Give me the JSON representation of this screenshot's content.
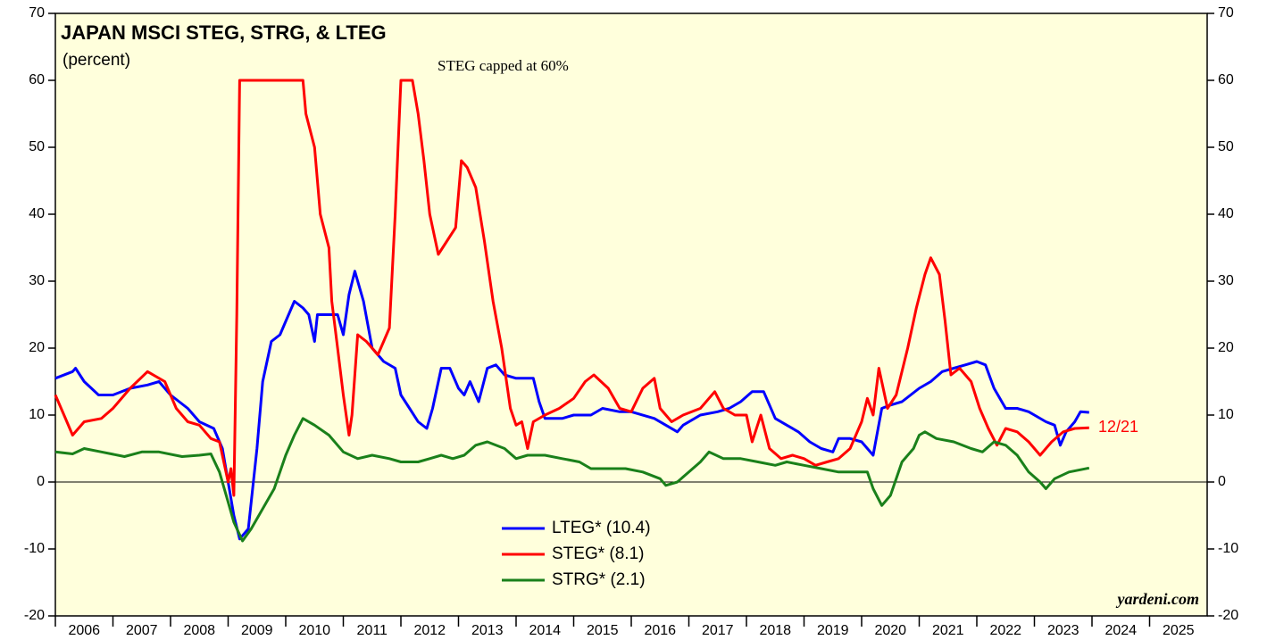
{
  "chart_data": {
    "type": "line",
    "title": "JAPAN MSCI STEG, STRG, & LTEG",
    "subtitle": "(percent)",
    "annotations": [
      "STEG capped at 60%",
      "12/21"
    ],
    "source": "yardeni.com",
    "xlim": [
      2006,
      2026
    ],
    "xticks": [
      2006,
      2007,
      2008,
      2009,
      2010,
      2011,
      2012,
      2013,
      2014,
      2015,
      2016,
      2017,
      2018,
      2019,
      2020,
      2021,
      2022,
      2023,
      2024,
      2025
    ],
    "ylim": [
      -20,
      70
    ],
    "yticks": [
      -20,
      -10,
      0,
      10,
      20,
      30,
      40,
      50,
      60,
      70
    ],
    "series": [
      {
        "name": "LTEG* (10.4)",
        "color": "#0000ff",
        "x": [
          2006.0,
          2006.3,
          2006.35,
          2006.5,
          2006.75,
          2007.0,
          2007.3,
          2007.6,
          2007.8,
          2008.0,
          2008.3,
          2008.5,
          2008.75,
          2008.9,
          2009.0,
          2009.1,
          2009.2,
          2009.35,
          2009.5,
          2009.6,
          2009.75,
          2009.9,
          2010.0,
          2010.15,
          2010.3,
          2010.4,
          2010.5,
          2010.55,
          2010.75,
          2010.9,
          2011.0,
          2011.1,
          2011.2,
          2011.35,
          2011.5,
          2011.7,
          2011.9,
          2012.0,
          2012.15,
          2012.3,
          2012.45,
          2012.55,
          2012.7,
          2012.85,
          2013.0,
          2013.1,
          2013.2,
          2013.35,
          2013.5,
          2013.65,
          2013.8,
          2014.0,
          2014.15,
          2014.3,
          2014.4,
          2014.5,
          2014.8,
          2015.0,
          2015.3,
          2015.5,
          2015.8,
          2016.0,
          2016.4,
          2016.6,
          2016.8,
          2016.9,
          2017.2,
          2017.5,
          2017.7,
          2017.9,
          2018.1,
          2018.3,
          2018.5,
          2018.7,
          2018.9,
          2019.1,
          2019.3,
          2019.5,
          2019.6,
          2019.8,
          2020.0,
          2020.2,
          2020.35,
          2020.5,
          2020.7,
          2021.0,
          2021.2,
          2021.4,
          2021.6,
          2021.8,
          2022.0,
          2022.15,
          2022.3,
          2022.5,
          2022.7,
          2022.9,
          2023.0,
          2023.2,
          2023.35,
          2023.45,
          2023.55,
          2023.7,
          2023.8,
          2023.95
        ],
        "values": [
          15.5,
          16.5,
          17,
          15,
          13,
          13,
          14,
          14.5,
          15,
          13,
          11,
          9,
          8,
          5,
          0,
          -5,
          -8.5,
          -7,
          5,
          15,
          21,
          22,
          24,
          27,
          26,
          25,
          21,
          25,
          25,
          25,
          22,
          28,
          31.5,
          27,
          20,
          18,
          17,
          13,
          11,
          9,
          8,
          11,
          17,
          17,
          14,
          13,
          15,
          12,
          17,
          17.5,
          16,
          15.5,
          15.5,
          15.5,
          12,
          9.5,
          9.5,
          10,
          10,
          11,
          10.5,
          10.5,
          9.5,
          8.5,
          7.5,
          8.5,
          10,
          10.5,
          11,
          12,
          13.5,
          13.5,
          9.5,
          8.5,
          7.5,
          6,
          5,
          4.5,
          6.5,
          6.5,
          6,
          4,
          11,
          11.5,
          12,
          14,
          15,
          16.5,
          17,
          17.5,
          18,
          17.5,
          14,
          11,
          11,
          10.5,
          10,
          9,
          8.5,
          5.5,
          7.5,
          9,
          10.5,
          10.4
        ]
      },
      {
        "name": "STEG* (8.1)",
        "color": "#ff0000",
        "x": [
          2006.0,
          2006.15,
          2006.3,
          2006.5,
          2006.8,
          2007.0,
          2007.3,
          2007.6,
          2007.9,
          2008.1,
          2008.3,
          2008.5,
          2008.7,
          2008.85,
          2009.0,
          2009.05,
          2009.1,
          2009.15,
          2009.2,
          2010.3,
          2010.35,
          2010.5,
          2010.6,
          2010.75,
          2010.8,
          2010.9,
          2011.0,
          2011.1,
          2011.15,
          2011.25,
          2011.4,
          2011.6,
          2011.7,
          2011.8,
          2011.9,
          2012.0,
          2012.2,
          2012.3,
          2012.4,
          2012.5,
          2012.65,
          2012.8,
          2012.95,
          2013.05,
          2013.15,
          2013.3,
          2013.45,
          2013.6,
          2013.75,
          2013.9,
          2014.0,
          2014.1,
          2014.2,
          2014.3,
          2014.5,
          2014.75,
          2015.0,
          2015.2,
          2015.35,
          2015.6,
          2015.8,
          2016.0,
          2016.2,
          2016.4,
          2016.5,
          2016.7,
          2016.9,
          2017.2,
          2017.45,
          2017.6,
          2017.8,
          2018.0,
          2018.1,
          2018.25,
          2018.4,
          2018.6,
          2018.8,
          2019.0,
          2019.2,
          2019.4,
          2019.6,
          2019.8,
          2020.0,
          2020.1,
          2020.2,
          2020.3,
          2020.45,
          2020.6,
          2020.8,
          2020.95,
          2021.1,
          2021.2,
          2021.35,
          2021.45,
          2021.55,
          2021.7,
          2021.9,
          2022.05,
          2022.2,
          2022.35,
          2022.5,
          2022.7,
          2022.9,
          2023.1,
          2023.3,
          2023.5,
          2023.7,
          2023.95
        ],
        "values": [
          13,
          10,
          7,
          9,
          9.5,
          11,
          14,
          16.5,
          15,
          11,
          9,
          8.5,
          6.5,
          6,
          0,
          2,
          -2,
          25,
          60,
          60,
          55,
          50,
          40,
          35,
          27,
          20,
          13,
          7,
          10,
          22,
          21,
          19,
          21,
          23,
          40,
          60,
          60,
          55,
          48,
          40,
          34,
          36,
          38,
          48,
          47,
          44,
          36,
          27,
          20,
          11,
          8.5,
          9,
          5,
          9,
          10,
          11,
          12.5,
          15,
          16,
          14,
          11,
          10.5,
          14,
          15.5,
          11,
          9,
          10,
          11,
          13.5,
          11,
          10,
          10,
          6,
          10,
          5,
          3.5,
          4,
          3.5,
          2.5,
          3,
          3.5,
          5,
          9,
          12.5,
          10,
          17,
          11,
          13,
          20,
          26,
          31,
          33.5,
          31,
          24,
          16,
          17,
          15,
          11,
          8,
          5.5,
          8,
          7.5,
          6,
          4,
          6,
          7.5,
          8,
          8.1
        ]
      },
      {
        "name": "STRG* (2.1)",
        "color": "#1a801a",
        "x": [
          2006.0,
          2006.3,
          2006.5,
          2006.8,
          2007.2,
          2007.5,
          2007.8,
          2008.2,
          2008.5,
          2008.7,
          2008.85,
          2009.0,
          2009.1,
          2009.25,
          2009.4,
          2009.6,
          2009.8,
          2010.0,
          2010.15,
          2010.3,
          2010.5,
          2010.75,
          2011.0,
          2011.25,
          2011.5,
          2011.8,
          2012.0,
          2012.3,
          2012.5,
          2012.7,
          2012.9,
          2013.1,
          2013.3,
          2013.5,
          2013.8,
          2014.0,
          2014.2,
          2014.5,
          2014.8,
          2015.1,
          2015.3,
          2015.6,
          2015.9,
          2016.2,
          2016.5,
          2016.6,
          2016.8,
          2017.0,
          2017.2,
          2017.35,
          2017.6,
          2017.9,
          2018.2,
          2018.5,
          2018.7,
          2019.0,
          2019.3,
          2019.6,
          2019.9,
          2020.1,
          2020.2,
          2020.35,
          2020.5,
          2020.7,
          2020.9,
          2021.0,
          2021.1,
          2021.3,
          2021.6,
          2021.9,
          2022.1,
          2022.3,
          2022.5,
          2022.7,
          2022.9,
          2023.1,
          2023.2,
          2023.35,
          2023.6,
          2023.95
        ],
        "values": [
          4.5,
          4.2,
          5,
          4.5,
          3.8,
          4.5,
          4.5,
          3.8,
          4,
          4.2,
          1.5,
          -3,
          -6,
          -8.8,
          -7,
          -4,
          -1,
          4,
          7,
          9.5,
          8.5,
          7,
          4.5,
          3.5,
          4,
          3.5,
          3,
          3,
          3.5,
          4,
          3.5,
          4,
          5.5,
          6,
          5,
          3.5,
          4,
          4,
          3.5,
          3,
          2,
          2,
          2,
          1.5,
          0.5,
          -0.5,
          0,
          1.5,
          3,
          4.5,
          3.5,
          3.5,
          3,
          2.5,
          3,
          2.5,
          2,
          1.5,
          1.5,
          1.5,
          -1,
          -3.5,
          -2,
          3,
          5,
          7,
          7.5,
          6.5,
          6,
          5,
          4.5,
          6,
          5.5,
          4,
          1.5,
          0,
          -1,
          0.5,
          1.5,
          2.1
        ]
      }
    ]
  }
}
